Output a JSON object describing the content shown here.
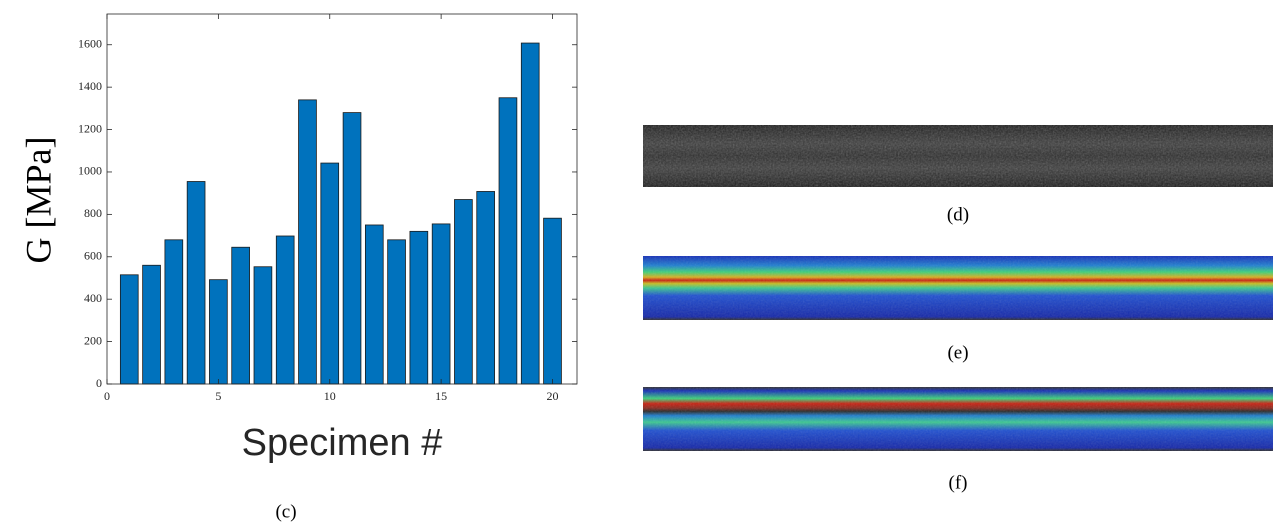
{
  "chart_data": {
    "type": "bar",
    "caption": "(c)",
    "ylabel": "G [MPa]",
    "xlabel": "Specimen #",
    "x": [
      1,
      2,
      3,
      4,
      5,
      6,
      7,
      8,
      9,
      10,
      11,
      12,
      13,
      14,
      15,
      16,
      17,
      18,
      19,
      20
    ],
    "values": [
      515,
      560,
      680,
      955,
      492,
      645,
      553,
      698,
      1340,
      1042,
      1280,
      750,
      680,
      720,
      755,
      870,
      908,
      1350,
      1608,
      782
    ],
    "color": "#0072bd",
    "xlim": [
      0,
      21.1
    ],
    "xticks": [
      0,
      5,
      10,
      15,
      20
    ],
    "ylim": [
      0,
      1745
    ],
    "yticks": [
      0,
      200,
      400,
      600,
      800,
      1000,
      1200,
      1400,
      1600
    ]
  },
  "images": [
    {
      "caption": "(d)"
    },
    {
      "caption": "(e)"
    },
    {
      "caption": "(f)"
    }
  ]
}
